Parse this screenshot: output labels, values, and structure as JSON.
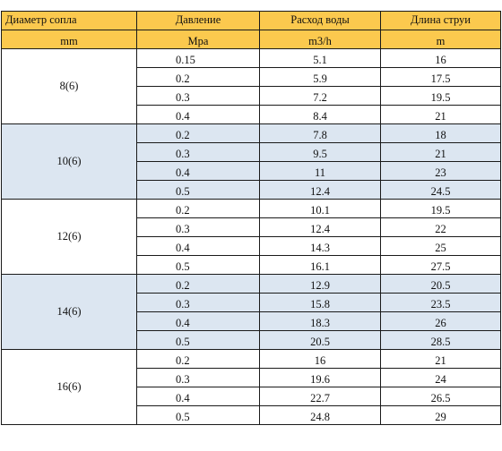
{
  "headers": {
    "row1": [
      "Диаметр сопла",
      "Давление",
      "Расход воды",
      "Длина струи"
    ],
    "row2": [
      "mm",
      "Mpa",
      "m3/h",
      "m"
    ]
  },
  "groups": [
    {
      "diameter": "8(6)",
      "rows": [
        [
          "0.15",
          "5.1",
          "16"
        ],
        [
          "0.2",
          "5.9",
          "17.5"
        ],
        [
          "0.3",
          "7.2",
          "19.5"
        ],
        [
          "0.4",
          "8.4",
          "21"
        ]
      ]
    },
    {
      "diameter": "10(6)",
      "rows": [
        [
          "0.2",
          "7.8",
          "18"
        ],
        [
          "0.3",
          "9.5",
          "21"
        ],
        [
          "0.4",
          "11",
          "23"
        ],
        [
          "0.5",
          "12.4",
          "24.5"
        ]
      ]
    },
    {
      "diameter": "12(6)",
      "rows": [
        [
          "0.2",
          "10.1",
          "19.5"
        ],
        [
          "0.3",
          "12.4",
          "22"
        ],
        [
          "0.4",
          "14.3",
          "25"
        ],
        [
          "0.5",
          "16.1",
          "27.5"
        ]
      ]
    },
    {
      "diameter": "14(6)",
      "rows": [
        [
          "0.2",
          "12.9",
          "20.5"
        ],
        [
          "0.3",
          "15.8",
          "23.5"
        ],
        [
          "0.4",
          "18.3",
          "26"
        ],
        [
          "0.5",
          "20.5",
          "28.5"
        ]
      ]
    },
    {
      "diameter": "16(6)",
      "rows": [
        [
          "0.2",
          "16",
          "21"
        ],
        [
          "0.3",
          "19.6",
          "24"
        ],
        [
          "0.4",
          "22.7",
          "26.5"
        ],
        [
          "0.5",
          "24.8",
          "29"
        ]
      ]
    }
  ],
  "colors": {
    "header_bg": "#fbc94e",
    "shade_bg": "#dce6f1",
    "border": "#1a1a1a"
  }
}
